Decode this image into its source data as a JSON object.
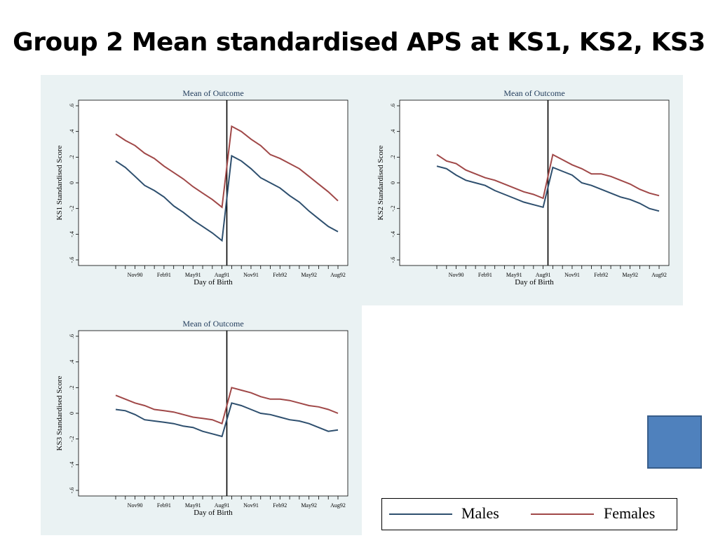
{
  "slide": {
    "title": "Group 2 Mean standardised APS at KS1, KS2, KS3"
  },
  "legend": {
    "males": "Males",
    "females": "Females"
  },
  "colors": {
    "males": "#2e4f6e",
    "females": "#a04848",
    "panel_bg": "#eaf2f3",
    "square": "#4f81bd"
  },
  "chart_data": [
    {
      "type": "line",
      "title": "Mean of Outcome",
      "xlabel": "Day of Birth",
      "ylabel": "KS1 Standardised Score",
      "ylim": [
        -0.6,
        0.6
      ],
      "yticks": [
        "-.6",
        "-.4",
        "-.2",
        "0",
        ".2",
        ".4",
        ".6"
      ],
      "xticks": [
        "Nov90",
        "Feb91",
        "May91",
        "Aug91",
        "Nov91",
        "Feb92",
        "May92",
        "Aug92"
      ],
      "cutoff": "Aug91",
      "x": [
        "Sep90",
        "Oct90",
        "Nov90",
        "Dec90",
        "Jan91",
        "Feb91",
        "Mar91",
        "Apr91",
        "May91",
        "Jun91",
        "Jul91",
        "Aug91",
        "Sep91",
        "Oct91",
        "Nov91",
        "Dec91",
        "Jan92",
        "Feb92",
        "Mar92",
        "Apr92",
        "May92",
        "Jun92",
        "Jul92",
        "Aug92"
      ],
      "series": [
        {
          "name": "Males",
          "values": [
            0.17,
            0.12,
            0.05,
            -0.02,
            -0.06,
            -0.11,
            -0.18,
            -0.23,
            -0.29,
            -0.34,
            -0.39,
            -0.45,
            0.21,
            0.17,
            0.11,
            0.04,
            0.0,
            -0.04,
            -0.1,
            -0.15,
            -0.22,
            -0.28,
            -0.34,
            -0.38
          ]
        },
        {
          "name": "Females",
          "values": [
            0.38,
            0.33,
            0.29,
            0.23,
            0.19,
            0.13,
            0.08,
            0.03,
            -0.03,
            -0.08,
            -0.13,
            -0.19,
            0.44,
            0.4,
            0.34,
            0.29,
            0.22,
            0.19,
            0.15,
            0.11,
            0.05,
            -0.01,
            -0.07,
            -0.14
          ]
        }
      ]
    },
    {
      "type": "line",
      "title": "Mean of Outcome",
      "xlabel": "Day of Birth",
      "ylabel": "KS2 Standardised Score",
      "ylim": [
        -0.6,
        0.6
      ],
      "yticks": [
        "-.6",
        "-.4",
        "-.2",
        "0",
        ".2",
        ".4",
        ".6"
      ],
      "xticks": [
        "Nov90",
        "Feb91",
        "May91",
        "Aug91",
        "Nov91",
        "Feb92",
        "May92",
        "Aug92"
      ],
      "cutoff": "Aug91",
      "x": [
        "Sep90",
        "Oct90",
        "Nov90",
        "Dec90",
        "Jan91",
        "Feb91",
        "Mar91",
        "Apr91",
        "May91",
        "Jun91",
        "Jul91",
        "Aug91",
        "Sep91",
        "Oct91",
        "Nov91",
        "Dec91",
        "Jan92",
        "Feb92",
        "Mar92",
        "Apr92",
        "May92",
        "Jun92",
        "Jul92",
        "Aug92"
      ],
      "series": [
        {
          "name": "Males",
          "values": [
            0.13,
            0.11,
            0.06,
            0.02,
            0.0,
            -0.02,
            -0.06,
            -0.09,
            -0.12,
            -0.15,
            -0.17,
            -0.19,
            0.12,
            0.09,
            0.06,
            0.0,
            -0.02,
            -0.05,
            -0.08,
            -0.11,
            -0.13,
            -0.16,
            -0.2,
            -0.22
          ]
        },
        {
          "name": "Females",
          "values": [
            0.22,
            0.17,
            0.15,
            0.1,
            0.07,
            0.04,
            0.02,
            -0.01,
            -0.04,
            -0.07,
            -0.09,
            -0.12,
            0.22,
            0.18,
            0.14,
            0.11,
            0.07,
            0.07,
            0.05,
            0.02,
            -0.01,
            -0.05,
            -0.08,
            -0.1
          ]
        }
      ]
    },
    {
      "type": "line",
      "title": "Mean of Outcome",
      "xlabel": "Day of Birth",
      "ylabel": "KS3 Standardised Score",
      "ylim": [
        -0.6,
        0.6
      ],
      "yticks": [
        "-.6",
        "-.4",
        "-.2",
        "0",
        ".2",
        ".4",
        ".6"
      ],
      "xticks": [
        "Nov90",
        "Feb91",
        "May91",
        "Aug91",
        "Nov91",
        "Feb92",
        "May92",
        "Aug92"
      ],
      "cutoff": "Aug91",
      "x": [
        "Sep90",
        "Oct90",
        "Nov90",
        "Dec90",
        "Jan91",
        "Feb91",
        "Mar91",
        "Apr91",
        "May91",
        "Jun91",
        "Jul91",
        "Aug91",
        "Sep91",
        "Oct91",
        "Nov91",
        "Dec91",
        "Jan92",
        "Feb92",
        "Mar92",
        "Apr92",
        "May92",
        "Jun92",
        "Jul92",
        "Aug92"
      ],
      "series": [
        {
          "name": "Males",
          "values": [
            0.03,
            0.02,
            -0.01,
            -0.05,
            -0.06,
            -0.07,
            -0.08,
            -0.1,
            -0.11,
            -0.14,
            -0.16,
            -0.18,
            0.08,
            0.06,
            0.03,
            0.0,
            -0.01,
            -0.03,
            -0.05,
            -0.06,
            -0.08,
            -0.11,
            -0.14,
            -0.13
          ]
        },
        {
          "name": "Females",
          "values": [
            0.14,
            0.11,
            0.08,
            0.06,
            0.03,
            0.02,
            0.01,
            -0.01,
            -0.03,
            -0.04,
            -0.05,
            -0.08,
            0.2,
            0.18,
            0.16,
            0.13,
            0.11,
            0.11,
            0.1,
            0.08,
            0.06,
            0.05,
            0.03,
            0.0
          ]
        }
      ]
    }
  ]
}
